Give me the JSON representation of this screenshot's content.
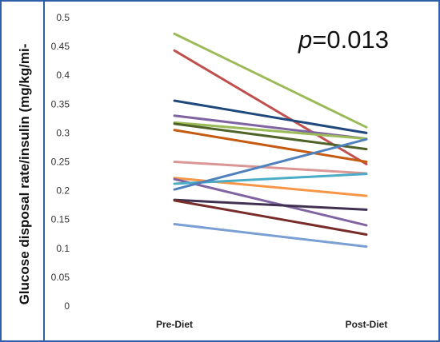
{
  "chart_data": {
    "type": "line",
    "title": "",
    "xlabel": "",
    "ylabel": "Glucose disposal rate/insulin (mg/kg/mi-",
    "annotation": {
      "p_symbol": "p",
      "p_value": "=0.013"
    },
    "categories": [
      "Pre-Diet",
      "Post-Diet"
    ],
    "ylim": [
      0,
      0.5
    ],
    "yticks": [
      "0",
      "0.05",
      "0.1",
      "0.15",
      "0.2",
      "0.25",
      "0.3",
      "0.35",
      "0.4",
      "0.45",
      "0.5"
    ],
    "grid": false,
    "legend": "none",
    "series": [
      {
        "values": [
          0.472,
          0.31
        ],
        "color": "#9bbb59"
      },
      {
        "values": [
          0.443,
          0.246
        ],
        "color": "#c0504d"
      },
      {
        "values": [
          0.356,
          0.3
        ],
        "color": "#1f497d"
      },
      {
        "values": [
          0.33,
          0.29
        ],
        "color": "#8064a2"
      },
      {
        "values": [
          0.318,
          0.29
        ],
        "color": "#9bbb59"
      },
      {
        "values": [
          0.316,
          0.272
        ],
        "color": "#4f6228"
      },
      {
        "values": [
          0.305,
          0.25
        ],
        "color": "#c55a11"
      },
      {
        "values": [
          0.25,
          0.23
        ],
        "color": "#d99694"
      },
      {
        "values": [
          0.222,
          0.191
        ],
        "color": "#f79646"
      },
      {
        "values": [
          0.22,
          0.14
        ],
        "color": "#8064a2"
      },
      {
        "values": [
          0.212,
          0.229
        ],
        "color": "#4bacc6"
      },
      {
        "values": [
          0.202,
          0.289
        ],
        "color": "#4f81bd"
      },
      {
        "values": [
          0.184,
          0.167
        ],
        "color": "#403151"
      },
      {
        "values": [
          0.183,
          0.124
        ],
        "color": "#772c2a"
      },
      {
        "values": [
          0.142,
          0.103
        ],
        "color": "#7a9fd4"
      }
    ]
  }
}
